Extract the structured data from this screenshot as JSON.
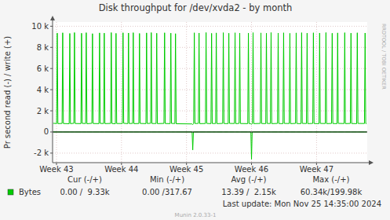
{
  "chart_data": {
    "type": "line",
    "title": "Disk throughput for /dev/xvda2 - by month",
    "y_label": "Pr second read (-) / write (+)",
    "side_text": "RRDTOOL / TOBI OETIKER",
    "last_update": "Last update: Mon Nov 25 14:35:00 2024",
    "footer": "Munin 2.0.33-1",
    "grid": true,
    "legend": "bottom",
    "xlim": [
      42.94,
      47.78
    ],
    "xticks": [
      {
        "value": 43,
        "label": "Week 43"
      },
      {
        "value": 44,
        "label": "Week 44"
      },
      {
        "value": 45,
        "label": "Week 45"
      },
      {
        "value": 46,
        "label": "Week 46"
      },
      {
        "value": 47,
        "label": "Week 47"
      }
    ],
    "ylim": [
      -2900,
      10400
    ],
    "yticks": [
      {
        "value": -2000,
        "label": "-2 k"
      },
      0,
      {
        "value": 2000,
        "label": "2 k"
      },
      {
        "value": 4000,
        "label": "4 k"
      },
      {
        "value": 6000,
        "label": "6 k"
      },
      {
        "value": 8000,
        "label": "8 k"
      },
      {
        "value": 10000,
        "label": "10 k"
      }
    ],
    "summary": {
      "columns": [
        "Cur (-/+)",
        "Min (-/+)",
        "Avg (-/+)",
        "Max (-/+)"
      ],
      "rows": [
        {
          "label": "Bytes",
          "cells": [
            "0.00 /  9.33k",
            "0.00 /317.67",
            "13.39 /  2.15k",
            "60.34k/199.98k"
          ]
        }
      ]
    },
    "x": [
      42.95,
      43.002,
      43.012,
      43.022,
      43.086,
      43.096,
      43.106,
      43.195,
      43.205,
      43.215,
      43.267,
      43.277,
      43.287,
      43.376,
      43.386,
      43.396,
      43.448,
      43.458,
      43.468,
      43.544,
      43.554,
      43.564,
      43.653,
      43.663,
      43.673,
      43.725,
      43.735,
      43.745,
      43.833,
      43.843,
      43.853,
      43.906,
      43.916,
      43.926,
      44.014,
      44.024,
      44.034,
      44.098,
      44.108,
      44.118,
      44.171,
      44.181,
      44.191,
      44.267,
      44.277,
      44.287,
      44.376,
      44.386,
      44.396,
      44.448,
      44.458,
      44.468,
      44.532,
      44.542,
      44.552,
      44.653,
      44.663,
      44.673,
      44.749,
      44.759,
      44.769,
      44.821,
      44.831,
      44.841,
      45.086,
      45.096,
      45.106,
      45.11,
      45.12,
      45.13,
      45.183,
      45.193,
      45.203,
      45.291,
      45.301,
      45.311,
      45.376,
      45.386,
      45.396,
      45.448,
      45.458,
      45.468,
      45.556,
      45.566,
      45.576,
      45.641,
      45.651,
      45.661,
      45.737,
      45.747,
      45.757,
      45.809,
      45.819,
      45.829,
      45.942,
      45.952,
      45.962,
      45.99,
      46,
      46.01,
      46.014,
      46.024,
      46.034,
      46.135,
      46.145,
      46.155,
      46.219,
      46.229,
      46.239,
      46.291,
      46.301,
      46.311,
      46.4,
      46.41,
      46.42,
      46.484,
      46.494,
      46.504,
      46.58,
      46.59,
      46.6,
      46.677,
      46.687,
      46.697,
      46.761,
      46.771,
      46.781,
      46.845,
      46.855,
      46.865,
      46.942,
      46.952,
      46.962,
      47.038,
      47.048,
      47.058,
      47.135,
      47.145,
      47.155,
      47.231,
      47.241,
      47.251,
      47.315,
      47.325,
      47.335,
      47.424,
      47.434,
      47.444,
      47.52,
      47.53,
      47.54,
      47.617,
      47.627,
      47.637,
      47.737,
      47.747,
      47.757,
      47.77
    ],
    "series": [
      {
        "name": "Bytes",
        "color": "#00cc00",
        "values": [
          820,
          800,
          9350,
          790,
          810,
          9380,
          800,
          780,
          9320,
          790,
          820,
          9400,
          800,
          790,
          9340,
          810,
          800,
          9390,
          780,
          820,
          9300,
          800,
          790,
          9370,
          810,
          800,
          9350,
          790,
          810,
          9400,
          800,
          780,
          9330,
          800,
          800,
          9380,
          820,
          790,
          9360,
          800,
          810,
          9390,
          790,
          800,
          9320,
          810,
          790,
          9370,
          800,
          820,
          9400,
          800,
          800,
          9340,
          790,
          810,
          9380,
          800,
          790,
          9350,
          810,
          800,
          9300,
          780,
          760,
          700,
          770,
          790,
          9380,
          800,
          810,
          9360,
          790,
          800,
          9400,
          810,
          790,
          9330,
          800,
          800,
          9370,
          790,
          810,
          9390,
          800,
          790,
          9340,
          810,
          800,
          9380,
          790,
          810,
          9360,
          800,
          790,
          9350,
          800,
          780,
          720,
          790,
          800,
          9390,
          790,
          810,
          9370,
          800,
          790,
          9340,
          810,
          800,
          9400,
          790,
          810,
          9360,
          800,
          790,
          9380,
          810,
          800,
          9330,
          790,
          810,
          9370,
          800,
          790,
          9390,
          810,
          800,
          9350,
          790,
          810,
          9380,
          800,
          790,
          9360,
          810,
          800,
          9400,
          790,
          810,
          9340,
          800,
          790,
          9370,
          810,
          800,
          9390,
          790,
          810,
          9350,
          800,
          790,
          9380,
          810,
          800,
          9360,
          800,
          800
        ]
      },
      {
        "name": "Bytes",
        "color": "#00cc00",
        "values": [
          0,
          0,
          0,
          0,
          0,
          0,
          0,
          0,
          0,
          0,
          0,
          0,
          0,
          0,
          0,
          0,
          0,
          0,
          0,
          0,
          0,
          0,
          0,
          0,
          0,
          0,
          0,
          0,
          0,
          0,
          0,
          0,
          0,
          0,
          0,
          0,
          0,
          0,
          0,
          0,
          0,
          0,
          0,
          0,
          0,
          0,
          0,
          0,
          0,
          0,
          0,
          0,
          0,
          0,
          0,
          0,
          0,
          0,
          0,
          0,
          0,
          0,
          0,
          0,
          0,
          -1700,
          0,
          0,
          0,
          0,
          0,
          0,
          0,
          0,
          0,
          0,
          0,
          0,
          0,
          0,
          0,
          0,
          0,
          0,
          0,
          0,
          0,
          0,
          0,
          0,
          0,
          0,
          0,
          0,
          0,
          0,
          0,
          0,
          -2600,
          0,
          0,
          0,
          0,
          0,
          0,
          0,
          0,
          0,
          0,
          0,
          0,
          0,
          0,
          0,
          0,
          0,
          0,
          0,
          0,
          0,
          0,
          0,
          0,
          0,
          0,
          0,
          0,
          0,
          0,
          0,
          0,
          0,
          0,
          0,
          0,
          0,
          0,
          0,
          0,
          0,
          0,
          0,
          0,
          0,
          0,
          0,
          0,
          0,
          0,
          0,
          0,
          0,
          0,
          0,
          0,
          0,
          0,
          0
        ]
      }
    ]
  }
}
